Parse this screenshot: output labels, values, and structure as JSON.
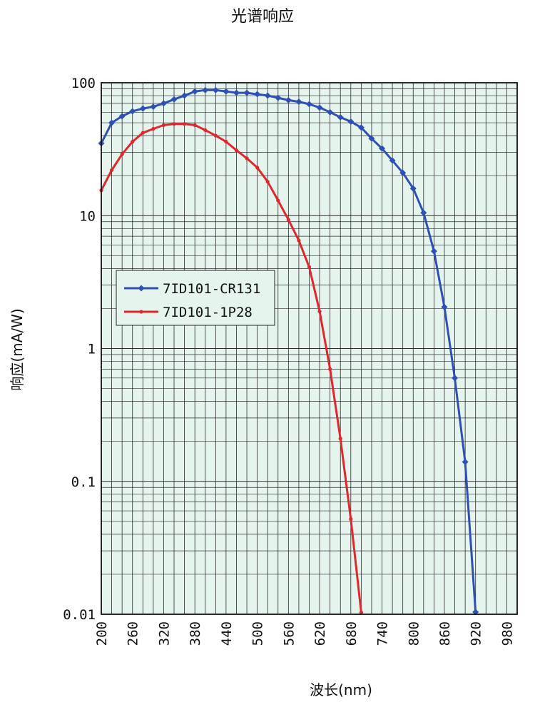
{
  "chart_data": {
    "type": "line",
    "title": "光谱响应",
    "xlabel": "波长(nm)",
    "ylabel": "响应(mA/W)",
    "xlim": [
      200,
      1000
    ],
    "ylim": [
      0.01,
      100
    ],
    "yscale": "log",
    "grid": true,
    "plot_background": "#e6f4ee",
    "grid_color": "#2c2c2c",
    "x_ticks": [
      "200",
      "260",
      "320",
      "380",
      "440",
      "500",
      "560",
      "620",
      "680",
      "740",
      "800",
      "860",
      "920",
      "980"
    ],
    "x_tick_values": [
      200,
      260,
      320,
      380,
      440,
      500,
      560,
      620,
      680,
      740,
      800,
      860,
      920,
      980
    ],
    "y_ticks": [
      "100",
      "10",
      "1",
      "0.1",
      "0.01"
    ],
    "y_tick_values": [
      100,
      10,
      1,
      0.1,
      0.01
    ],
    "legend_position": "middle-left",
    "series": [
      {
        "name": "7ID101-CR131",
        "color": "#2f4fb5",
        "marker": "diamond",
        "x": [
          200,
          220,
          240,
          260,
          280,
          300,
          320,
          340,
          360,
          380,
          400,
          420,
          440,
          460,
          480,
          500,
          520,
          540,
          560,
          580,
          600,
          620,
          640,
          660,
          680,
          700,
          720,
          740,
          760,
          780,
          800,
          820,
          840,
          860,
          880,
          900,
          920
        ],
        "values": [
          35,
          50,
          56,
          61,
          64,
          66,
          70,
          75,
          80,
          86,
          88,
          88,
          86,
          84,
          84,
          82,
          80,
          77,
          74,
          72,
          69,
          65,
          60,
          55,
          51,
          46,
          38,
          32,
          26,
          21,
          16,
          10.5,
          5.4,
          2.05,
          0.6,
          0.14,
          0.0104
        ]
      },
      {
        "name": "7ID101-1P28",
        "color": "#e0262e",
        "marker": "dot",
        "x": [
          200,
          220,
          240,
          260,
          280,
          300,
          320,
          340,
          360,
          380,
          400,
          420,
          440,
          460,
          480,
          500,
          520,
          540,
          560,
          580,
          600,
          620,
          640,
          660,
          680,
          700
        ],
        "values": [
          15.5,
          22,
          29,
          36,
          42,
          45,
          48,
          49,
          49,
          48,
          44,
          40,
          36,
          31,
          27,
          23,
          18,
          13,
          9.3,
          6.5,
          4.1,
          1.9,
          0.7,
          0.21,
          0.052,
          0.0103
        ]
      }
    ]
  }
}
